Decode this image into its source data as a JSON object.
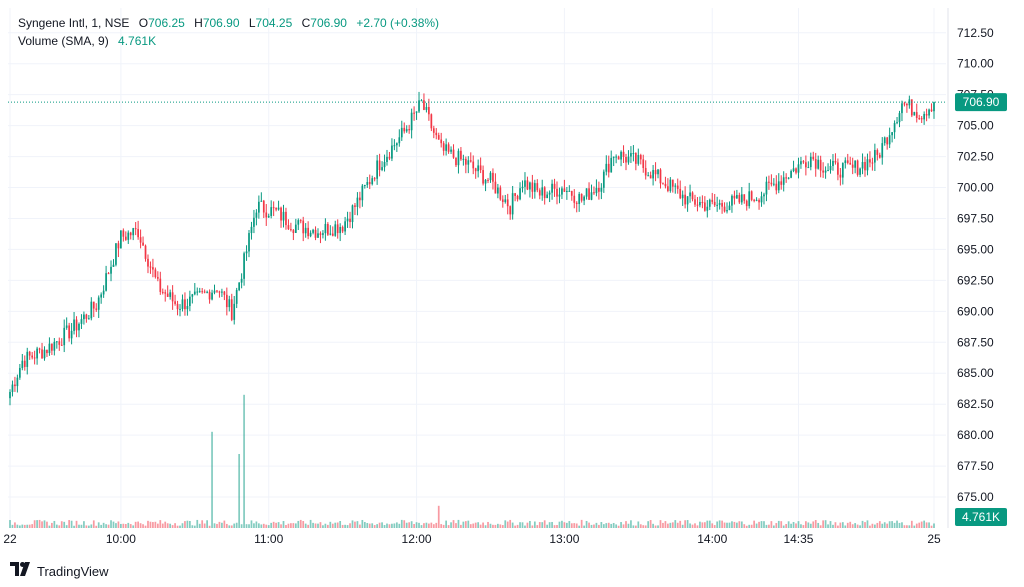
{
  "legend": {
    "symbol": "Syngene Intl, 1, NSE",
    "o_label": "O",
    "o_value": "706.25",
    "h_label": "H",
    "h_value": "706.90",
    "l_label": "L",
    "l_value": "704.25",
    "c_label": "C",
    "c_value": "706.90",
    "change": "+2.70 (+0.38%)",
    "volume_label": "Volume (SMA, 9)",
    "volume_value": "4.761K"
  },
  "brand": {
    "name": "TradingView"
  },
  "colors": {
    "up": "#089981",
    "down": "#f23645",
    "grid": "#f0f3fa",
    "axis_text": "#131722"
  },
  "chart_data": {
    "type": "candlestick",
    "y_ticks": [
      "712.50",
      "710.00",
      "707.50",
      "705.00",
      "702.50",
      "700.00",
      "697.50",
      "695.00",
      "692.50",
      "690.00",
      "687.50",
      "685.00",
      "682.50",
      "680.00",
      "677.50",
      "675.00"
    ],
    "ylim": [
      672.5,
      714.5
    ],
    "x_ticks": [
      {
        "label": "22",
        "bar": 0
      },
      {
        "label": "10:00",
        "bar": 45
      },
      {
        "label": "11:00",
        "bar": 105
      },
      {
        "label": "12:00",
        "bar": 165
      },
      {
        "label": "13:00",
        "bar": 225
      },
      {
        "label": "14:00",
        "bar": 285
      },
      {
        "label": "14:35",
        "bar": 320
      },
      {
        "label": "25",
        "bar": 375
      }
    ],
    "bar_count": 376,
    "last_price": "706.90",
    "last_volume": "4.761K",
    "price_path": [
      [
        0,
        683.5
      ],
      [
        5,
        686.0
      ],
      [
        15,
        687.0
      ],
      [
        25,
        688.5
      ],
      [
        35,
        690.5
      ],
      [
        45,
        696.0
      ],
      [
        52,
        696.5
      ],
      [
        60,
        692.0
      ],
      [
        68,
        690.5
      ],
      [
        76,
        691.0
      ],
      [
        84,
        692.0
      ],
      [
        90,
        690.0
      ],
      [
        95,
        694.0
      ],
      [
        100,
        698.5
      ],
      [
        108,
        698.0
      ],
      [
        115,
        697.0
      ],
      [
        125,
        696.5
      ],
      [
        135,
        697.0
      ],
      [
        140,
        698.5
      ],
      [
        150,
        702.0
      ],
      [
        160,
        704.5
      ],
      [
        167,
        706.8
      ],
      [
        175,
        703.0
      ],
      [
        185,
        702.0
      ],
      [
        195,
        700.5
      ],
      [
        203,
        698.5
      ],
      [
        208,
        700.5
      ],
      [
        215,
        699.5
      ],
      [
        225,
        700.0
      ],
      [
        232,
        699.0
      ],
      [
        240,
        700.5
      ],
      [
        245,
        702.8
      ],
      [
        255,
        702.0
      ],
      [
        265,
        700.5
      ],
      [
        275,
        699.0
      ],
      [
        285,
        698.5
      ],
      [
        295,
        698.8
      ],
      [
        305,
        699.5
      ],
      [
        315,
        701.0
      ],
      [
        325,
        702.5
      ],
      [
        332,
        701.5
      ],
      [
        342,
        701.5
      ],
      [
        352,
        702.5
      ],
      [
        358,
        705.0
      ],
      [
        362,
        706.8
      ],
      [
        370,
        706.0
      ],
      [
        375,
        706.9
      ]
    ],
    "volume_spikes": [
      {
        "bar": 82,
        "value": 13
      },
      {
        "bar": 93,
        "value": 10
      },
      {
        "bar": 95,
        "value": 18
      },
      {
        "bar": 174,
        "value": 3
      }
    ],
    "volume_max": 20
  }
}
